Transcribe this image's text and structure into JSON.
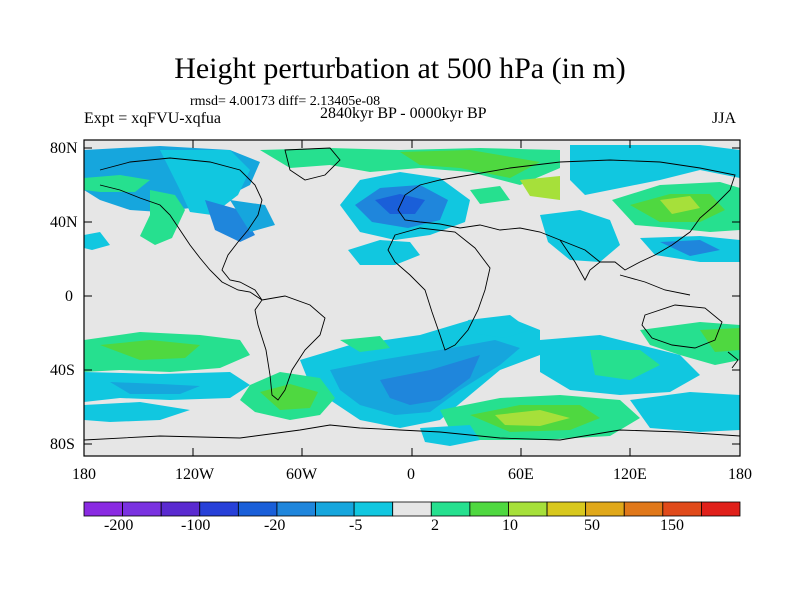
{
  "title": "Height perturbation at 500 hPa (in m)",
  "stats": "rmsd= 4.00173 diff= 2.13405e-08",
  "experiment": "Expt = xqFVU-xqfua",
  "period": "2840kyr BP - 0000kyr BP",
  "season": "JJA",
  "lat_labels": [
    "80N",
    "40N",
    "0",
    "40S",
    "80S"
  ],
  "lon_labels": [
    "180",
    "120W",
    "60W",
    "0",
    "60E",
    "120E",
    "180"
  ],
  "colorbar": {
    "colors": [
      "#8a2be2",
      "#7a32e0",
      "#5a2ad0",
      "#2740d8",
      "#1a5fd9",
      "#1f86dc",
      "#16a6dd",
      "#11c7e0",
      "#e6e6e6",
      "#26e08f",
      "#4fd840",
      "#a6e03a",
      "#d8c81e",
      "#e0a81a",
      "#e0781a",
      "#e04a1a",
      "#e0201a"
    ],
    "labels": [
      "-200",
      "-100",
      "-20",
      "-5",
      "2",
      "10",
      "50",
      "150"
    ]
  }
}
